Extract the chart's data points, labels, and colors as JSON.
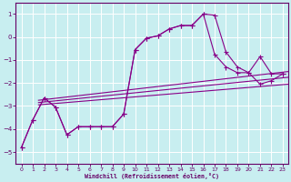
{
  "xlabel": "Windchill (Refroidissement éolien,°C)",
  "bg_color": "#c8eef0",
  "grid_color": "#ffffff",
  "line_color": "#880088",
  "xlim": [
    -0.5,
    23.5
  ],
  "ylim": [
    -5.5,
    1.5
  ],
  "yticks": [
    1,
    0,
    -1,
    -2,
    -3,
    -4,
    -5
  ],
  "xticks": [
    0,
    1,
    2,
    3,
    4,
    5,
    6,
    7,
    8,
    9,
    10,
    11,
    12,
    13,
    14,
    15,
    16,
    17,
    18,
    19,
    20,
    21,
    22,
    23
  ],
  "series_upper_x": [
    0,
    1,
    2,
    3,
    4,
    5,
    6,
    7,
    8,
    9,
    10,
    11,
    12,
    13,
    14,
    15,
    16,
    17,
    18,
    19,
    20,
    21,
    22,
    23
  ],
  "series_upper_y": [
    -4.8,
    -3.6,
    -2.65,
    -3.05,
    -4.25,
    -3.9,
    -3.9,
    -3.9,
    -3.9,
    -3.35,
    -0.55,
    -0.05,
    0.05,
    0.35,
    0.5,
    0.5,
    1.0,
    0.95,
    -0.65,
    -1.3,
    -1.55,
    -0.85,
    -1.6,
    -1.6
  ],
  "series_lower_x": [
    0,
    1,
    2,
    3,
    4,
    5,
    6,
    7,
    8,
    9,
    10,
    11,
    12,
    13,
    14,
    15,
    16,
    17,
    18,
    19,
    20,
    21,
    22,
    23
  ],
  "series_lower_y": [
    -4.8,
    -3.6,
    -2.65,
    -3.05,
    -4.25,
    -3.9,
    -3.9,
    -3.9,
    -3.9,
    -3.35,
    -0.55,
    -0.05,
    0.05,
    0.35,
    0.5,
    0.5,
    1.0,
    -0.75,
    -1.3,
    -1.55,
    -1.55,
    -2.05,
    -1.9,
    -1.6
  ],
  "regline1_x": [
    1.5,
    23.5
  ],
  "regline1_y": [
    -2.75,
    -1.5
  ],
  "regline2_x": [
    1.5,
    23.5
  ],
  "regline2_y": [
    -2.85,
    -1.75
  ],
  "regline3_x": [
    1.5,
    23.5
  ],
  "regline3_y": [
    -2.95,
    -2.05
  ]
}
